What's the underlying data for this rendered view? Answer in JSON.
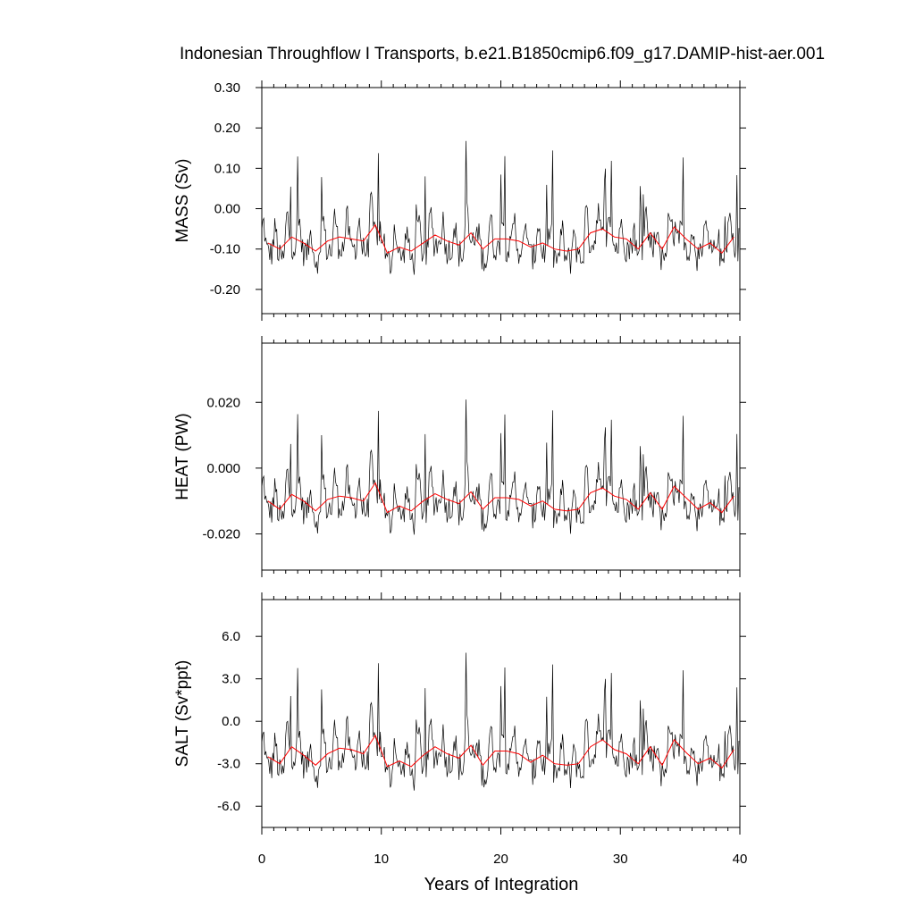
{
  "chart_data": {
    "type": "line",
    "title": "Indonesian Throughflow I Transports, b.e21.B1850cmip6.f09_g17.DAMIP-hist-aer.001",
    "xlabel": "Years of Integration",
    "xlim": [
      0,
      40
    ],
    "x_ticks": [
      0,
      10,
      20,
      30,
      40
    ],
    "x_tick_labels": [
      "0",
      "10",
      "20",
      "30",
      "40"
    ],
    "colors": {
      "monthly": "#000000",
      "annual": "#ff0000",
      "frame": "#000000"
    },
    "panels": [
      {
        "ylabel": "MASS (Sv)",
        "ylim": [
          -0.26,
          0.3
        ],
        "y_ticks": [
          0.3,
          0.2,
          0.1,
          0.0,
          -0.1,
          -0.2
        ],
        "y_tick_labels": [
          "0.30",
          "0.20",
          "0.10",
          "0.00",
          "-0.10",
          "-0.20"
        ],
        "annual_x": [
          0.5,
          1.5,
          2.5,
          3.5,
          4.5,
          5.5,
          6.5,
          7.5,
          8.5,
          9.5,
          10.5,
          11.5,
          12.5,
          13.5,
          14.5,
          15.5,
          16.5,
          17.5,
          18.5,
          19.5,
          20.5,
          21.5,
          22.5,
          23.5,
          24.5,
          25.5,
          26.5,
          27.5,
          28.5,
          29.5,
          30.5,
          31.5,
          32.5,
          33.5,
          34.5,
          35.5,
          36.5,
          37.5,
          38.5,
          39.5
        ],
        "annual_y": [
          -0.085,
          -0.1,
          -0.07,
          -0.085,
          -0.105,
          -0.08,
          -0.07,
          -0.075,
          -0.08,
          -0.04,
          -0.11,
          -0.095,
          -0.105,
          -0.085,
          -0.065,
          -0.08,
          -0.09,
          -0.06,
          -0.1,
          -0.075,
          -0.075,
          -0.08,
          -0.095,
          -0.085,
          -0.1,
          -0.105,
          -0.1,
          -0.06,
          -0.05,
          -0.07,
          -0.075,
          -0.1,
          -0.06,
          -0.1,
          -0.045,
          -0.075,
          -0.1,
          -0.085,
          -0.11,
          -0.07
        ]
      },
      {
        "ylabel": "HEAT (PW)",
        "ylim": [
          -0.031,
          0.038
        ],
        "y_ticks": [
          0.02,
          0.0,
          -0.02
        ],
        "y_tick_labels": [
          "0.020",
          "0.000",
          "-0.020"
        ],
        "annual_x": [
          0.5,
          1.5,
          2.5,
          3.5,
          4.5,
          5.5,
          6.5,
          7.5,
          8.5,
          9.5,
          10.5,
          11.5,
          12.5,
          13.5,
          14.5,
          15.5,
          16.5,
          17.5,
          18.5,
          19.5,
          20.5,
          21.5,
          22.5,
          23.5,
          24.5,
          25.5,
          26.5,
          27.5,
          28.5,
          29.5,
          30.5,
          31.5,
          32.5,
          33.5,
          34.5,
          35.5,
          36.5,
          37.5,
          38.5,
          39.5
        ],
        "annual_y": [
          -0.01,
          -0.0125,
          -0.008,
          -0.01,
          -0.013,
          -0.0095,
          -0.0085,
          -0.009,
          -0.01,
          -0.0045,
          -0.0135,
          -0.0115,
          -0.013,
          -0.01,
          -0.0078,
          -0.0095,
          -0.0108,
          -0.0072,
          -0.0125,
          -0.009,
          -0.009,
          -0.0095,
          -0.0115,
          -0.01,
          -0.0125,
          -0.013,
          -0.0125,
          -0.0075,
          -0.006,
          -0.0085,
          -0.0095,
          -0.0125,
          -0.0075,
          -0.0125,
          -0.0055,
          -0.009,
          -0.0125,
          -0.0105,
          -0.0135,
          -0.0085
        ]
      },
      {
        "ylabel": "SALT (Sv*ppt)",
        "ylim": [
          -7.5,
          8.6
        ],
        "y_ticks": [
          6.0,
          3.0,
          0.0,
          -3.0,
          -6.0
        ],
        "y_tick_labels": [
          "6.0",
          "3.0",
          "0.0",
          "-3.0",
          "-6.0"
        ],
        "annual_x": [
          0.5,
          1.5,
          2.5,
          3.5,
          4.5,
          5.5,
          6.5,
          7.5,
          8.5,
          9.5,
          10.5,
          11.5,
          12.5,
          13.5,
          14.5,
          15.5,
          16.5,
          17.5,
          18.5,
          19.5,
          20.5,
          21.5,
          22.5,
          23.5,
          24.5,
          25.5,
          26.5,
          27.5,
          28.5,
          29.5,
          30.5,
          31.5,
          32.5,
          33.5,
          34.5,
          35.5,
          36.5,
          37.5,
          38.5,
          39.5
        ],
        "annual_y": [
          -2.5,
          -3.0,
          -1.8,
          -2.4,
          -3.1,
          -2.3,
          -1.9,
          -2.0,
          -2.3,
          -1.0,
          -3.2,
          -2.8,
          -3.2,
          -2.4,
          -1.8,
          -2.3,
          -2.6,
          -1.7,
          -3.1,
          -2.1,
          -2.1,
          -2.3,
          -2.9,
          -2.4,
          -3.0,
          -3.1,
          -3.0,
          -1.8,
          -1.3,
          -2.0,
          -2.3,
          -3.0,
          -1.8,
          -3.1,
          -1.3,
          -2.2,
          -3.0,
          -2.6,
          -3.3,
          -2.0
        ]
      }
    ]
  }
}
